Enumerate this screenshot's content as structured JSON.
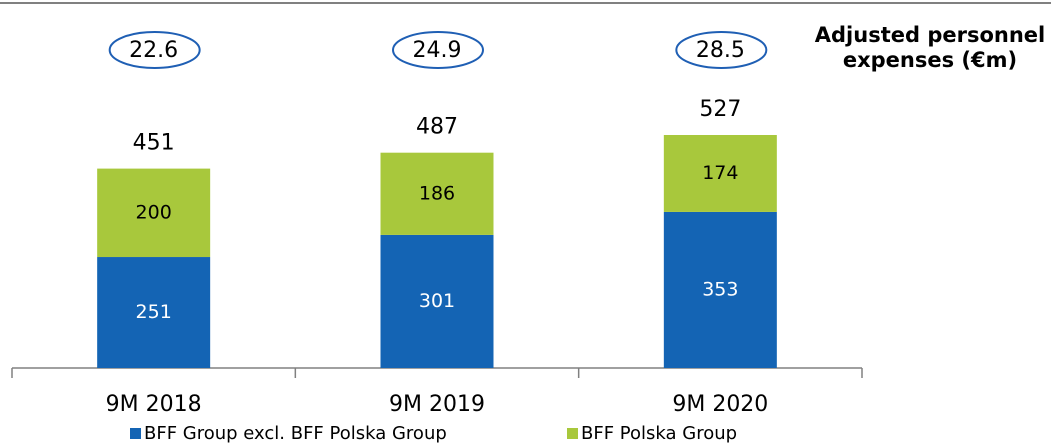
{
  "chart_data": {
    "type": "stacked-bar",
    "categories": [
      "9M 2018",
      "9M 2019",
      "9M 2020"
    ],
    "series": [
      {
        "name": "BFF Group excl. BFF Polska Group",
        "color": "#1464b4",
        "values": [
          251,
          301,
          353
        ]
      },
      {
        "name": "BFF Polska Group",
        "color": "#a8c83c",
        "values": [
          200,
          186,
          174
        ]
      }
    ],
    "totals": [
      451,
      487,
      527
    ],
    "annotation": {
      "title": [
        "Adjusted personnel",
        "expenses (€m)"
      ],
      "values": [
        22.6,
        24.9,
        28.5
      ]
    },
    "legend": "bottom"
  }
}
